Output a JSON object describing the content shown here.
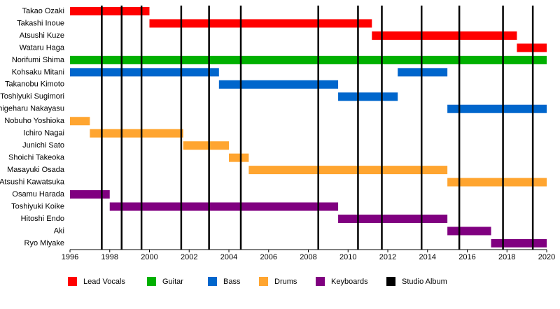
{
  "chart_data": {
    "type": "timeline",
    "categories": [
      "Takao Ozaki",
      "Takashi Inoue",
      "Atsushi Kuze",
      "Wataru Haga",
      "Norifumi Shima",
      "Kohsaku Mitani",
      "Takanobu Kimoto",
      "Toshiyuki Sugimori",
      "Shigeharu Nakayasu",
      "Nobuho Yoshioka",
      "Ichiro Nagai",
      "Junichi Sato",
      "Shoichi Takeoka",
      "Masayuki Osada",
      "Atsushi Kawatsuka",
      "Osamu Harada",
      "Toshiyuki Koike",
      "Hitoshi Endo",
      "Aki",
      "Ryo Miyake"
    ],
    "series": [
      {
        "name": "Lead Vocals",
        "color": "#ff0000",
        "values": [
          [
            [
              1996,
              2000
            ]
          ],
          [
            [
              2000,
              2011.2
            ]
          ],
          [
            [
              2011.2,
              2018.5
            ]
          ],
          [
            [
              2018.5,
              2020
            ]
          ],
          null,
          null,
          null,
          null,
          null,
          null,
          null,
          null,
          null,
          null,
          null,
          null,
          null,
          null,
          null,
          null
        ]
      },
      {
        "name": "Guitar",
        "color": "#00b000",
        "values": [
          null,
          null,
          null,
          null,
          [
            [
              1996,
              2020
            ]
          ],
          null,
          null,
          null,
          null,
          null,
          null,
          null,
          null,
          null,
          null,
          null,
          null,
          null,
          null,
          null
        ]
      },
      {
        "name": "Bass",
        "color": "#0066cc",
        "values": [
          null,
          null,
          null,
          null,
          null,
          [
            [
              1996,
              2003.5
            ],
            [
              2012.5,
              2015
            ]
          ],
          [
            [
              2003.5,
              2009.5
            ]
          ],
          [
            [
              2009.5,
              2012.5
            ]
          ],
          [
            [
              2015,
              2020
            ]
          ],
          null,
          null,
          null,
          null,
          null,
          null,
          null,
          null,
          null,
          null,
          null
        ]
      },
      {
        "name": "Drums",
        "color": "#ffa530",
        "values": [
          null,
          null,
          null,
          null,
          null,
          null,
          null,
          null,
          null,
          [
            [
              1996,
              1997
            ]
          ],
          [
            [
              1997,
              2001.7
            ]
          ],
          [
            [
              2001.7,
              2004
            ]
          ],
          [
            [
              2004,
              2005
            ]
          ],
          [
            [
              2005,
              2015
            ]
          ],
          [
            [
              2015,
              2020
            ]
          ],
          null,
          null,
          null,
          null,
          null
        ]
      },
      {
        "name": "Keyboards",
        "color": "#800080",
        "values": [
          null,
          null,
          null,
          null,
          null,
          null,
          null,
          null,
          null,
          null,
          null,
          null,
          null,
          null,
          null,
          [
            [
              1996,
              1998
            ]
          ],
          [
            [
              1998,
              2009.5
            ]
          ],
          [
            [
              2009.5,
              2015
            ]
          ],
          [
            [
              2015,
              2017.2
            ]
          ],
          [
            [
              2017.2,
              2020
            ]
          ]
        ]
      }
    ],
    "album_lines": {
      "name": "Studio Album",
      "color": "#000000",
      "x": [
        1997.6,
        1998.6,
        1999.6,
        2001.6,
        2003.0,
        2004.6,
        2008.5,
        2010.5,
        2011.7,
        2013.7,
        2015.6,
        2017.8,
        2019.3
      ]
    },
    "xlim": [
      1996,
      2020
    ],
    "xticks": [
      1996,
      1998,
      2000,
      2002,
      2004,
      2006,
      2008,
      2010,
      2012,
      2014,
      2016,
      2018,
      2020
    ]
  }
}
